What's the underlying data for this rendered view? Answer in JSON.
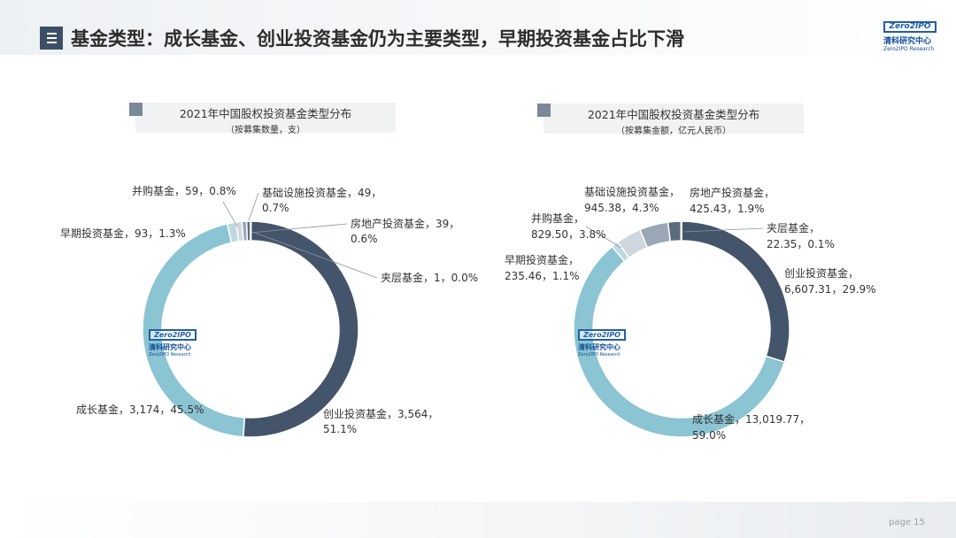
{
  "header": {
    "title": "基金类型：成长基金、创业投资基金仍为主要类型，早期投资基金占比下滑",
    "logo": {
      "zero_text": "Zero2IPO",
      "cn": "清科研究中心",
      "en": "Zero2IPO Research"
    }
  },
  "watermark": {
    "zero_text": "Zero2IPO",
    "cn": "清科研究中心",
    "en": "Zero2IPO Research"
  },
  "footer": {
    "page_label": "page",
    "page_number": "15"
  },
  "charts": [
    {
      "title": "2021年中国股权投资基金类型分布",
      "subtitle": "（按募集数量，支）"
    },
    {
      "title": "2021年中国股权投资基金类型分布",
      "subtitle": "（按募集金额，亿元人民币）"
    }
  ],
  "chart_data": [
    {
      "type": "pie",
      "title": "2021年中国股权投资基金类型分布",
      "subtitle": "（按募集数量，支）",
      "series": [
        {
          "name": "创业投资基金",
          "value": 3564,
          "percent": 51.1,
          "color": "#44546a",
          "label_lines": [
            "创业投资基金，3,564，",
            "51.1%"
          ]
        },
        {
          "name": "成长基金",
          "value": 3174,
          "percent": 45.5,
          "color": "#8bc4d2",
          "label_lines": [
            "成长基金，3,174，45.5%"
          ]
        },
        {
          "name": "早期投资基金",
          "value": 93,
          "percent": 1.3,
          "color": "#bcd9e3",
          "label_lines": [
            "早期投资基金，93，1.3%"
          ]
        },
        {
          "name": "并购基金",
          "value": 59,
          "percent": 0.8,
          "color": "#cfd6dd",
          "label_lines": [
            "并购基金，59，0.8%"
          ]
        },
        {
          "name": "基础设施投资基金",
          "value": 49,
          "percent": 0.7,
          "color": "#9aa7b5",
          "label_lines": [
            "基础设施投资基金，49，",
            "0.7%"
          ]
        },
        {
          "name": "房地产投资基金",
          "value": 39,
          "percent": 0.6,
          "color": "#5b6b7d",
          "label_lines": [
            "房地产投资基金，39，",
            "0.6%"
          ]
        },
        {
          "name": "夹层基金",
          "value": 1,
          "percent": 0.0,
          "color": "#2f3d4f",
          "label_lines": [
            "夹层基金，1，0.0%"
          ]
        }
      ]
    },
    {
      "type": "pie",
      "title": "2021年中国股权投资基金类型分布",
      "subtitle": "（按募集金额，亿元人民币）",
      "series": [
        {
          "name": "创业投资基金",
          "value": 6607.31,
          "percent": 29.9,
          "color": "#44546a",
          "label_lines": [
            "创业投资基金，",
            "6,607.31，29.9%"
          ]
        },
        {
          "name": "成长基金",
          "value": 13019.77,
          "percent": 59.0,
          "color": "#8bc4d2",
          "label_lines": [
            "成长基金，13,019.77，",
            "59.0%"
          ]
        },
        {
          "name": "早期投资基金",
          "value": 235.46,
          "percent": 1.1,
          "color": "#bcd9e3",
          "label_lines": [
            "早期投资基金，",
            "235.46，1.1%"
          ]
        },
        {
          "name": "并购基金",
          "value": 829.5,
          "percent": 3.8,
          "color": "#cfd6dd",
          "label_lines": [
            "并购基金，",
            "829.50，3.8%"
          ]
        },
        {
          "name": "基础设施投资基金",
          "value": 945.38,
          "percent": 4.3,
          "color": "#9aa7b5",
          "label_lines": [
            "基础设施投资基金，",
            "945.38，4.3%"
          ]
        },
        {
          "name": "房地产投资基金",
          "value": 425.43,
          "percent": 1.9,
          "color": "#5b6b7d",
          "label_lines": [
            "房地产投资基金，",
            "425.43，1.9%"
          ]
        },
        {
          "name": "夹层基金",
          "value": 22.35,
          "percent": 0.1,
          "color": "#2f3d4f",
          "label_lines": [
            "夹层基金，",
            "22.35，0.1%"
          ]
        }
      ]
    }
  ]
}
